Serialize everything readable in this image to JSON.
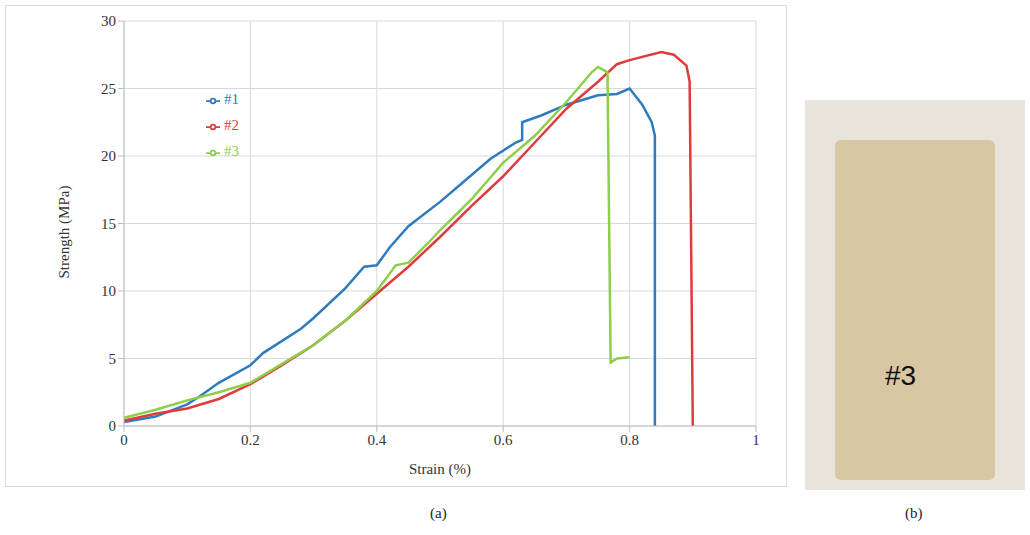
{
  "chart_data": {
    "type": "line",
    "x_label": "Strain (%)",
    "y_label": "Strength (MPa)",
    "xlim": [
      0,
      1
    ],
    "xticks": [
      0,
      0.2,
      0.4,
      0.6,
      0.8,
      1
    ],
    "ylim": [
      0,
      30
    ],
    "yticks": [
      0,
      5,
      10,
      15,
      20,
      25,
      30
    ],
    "grid": true,
    "legend": "upper left",
    "panel_labels": [
      "(a)",
      "(b)"
    ],
    "annotations": [
      "#3"
    ],
    "series": [
      {
        "name": "#1",
        "color": "#2f7bbf",
        "x": [
          0,
          0.05,
          0.1,
          0.12,
          0.15,
          0.2,
          0.22,
          0.28,
          0.3,
          0.35,
          0.38,
          0.4,
          0.42,
          0.45,
          0.5,
          0.53,
          0.58,
          0.62,
          0.63,
          0.63,
          0.66,
          0.7,
          0.75,
          0.78,
          0.8,
          0.82,
          0.835,
          0.84,
          0.84
        ],
        "values": [
          0.3,
          0.7,
          1.6,
          2.2,
          3.2,
          4.5,
          5.4,
          7.2,
          8.0,
          10.2,
          11.8,
          11.9,
          13.2,
          14.8,
          16.6,
          17.8,
          19.8,
          21,
          21.2,
          22.5,
          23,
          23.8,
          24.5,
          24.6,
          25,
          23.8,
          22.5,
          21.5,
          0
        ]
      },
      {
        "name": "#2",
        "color": "#e03b3b",
        "x": [
          0,
          0.05,
          0.1,
          0.15,
          0.2,
          0.25,
          0.3,
          0.35,
          0.4,
          0.45,
          0.5,
          0.55,
          0.6,
          0.65,
          0.7,
          0.75,
          0.78,
          0.8,
          0.85,
          0.87,
          0.89,
          0.895,
          0.9
        ],
        "values": [
          0.4,
          0.9,
          1.3,
          2,
          3.1,
          4.5,
          6,
          7.8,
          9.8,
          11.8,
          14,
          16.3,
          18.5,
          21,
          23.5,
          25.5,
          26.8,
          27.1,
          27.7,
          27.5,
          26.7,
          25.5,
          0
        ]
      },
      {
        "name": "#3",
        "color": "#8fce4a",
        "x": [
          0,
          0.05,
          0.1,
          0.15,
          0.2,
          0.25,
          0.3,
          0.35,
          0.4,
          0.43,
          0.45,
          0.48,
          0.5,
          0.55,
          0.6,
          0.65,
          0.7,
          0.74,
          0.75,
          0.765,
          0.77,
          0.78,
          0.8
        ],
        "values": [
          0.6,
          1.2,
          1.9,
          2.5,
          3.2,
          4.6,
          6,
          7.8,
          10,
          11.9,
          12.1,
          13.5,
          14.5,
          16.8,
          19.5,
          21.5,
          24,
          26.2,
          26.6,
          26.2,
          4.7,
          5,
          5.1
        ]
      }
    ]
  }
}
